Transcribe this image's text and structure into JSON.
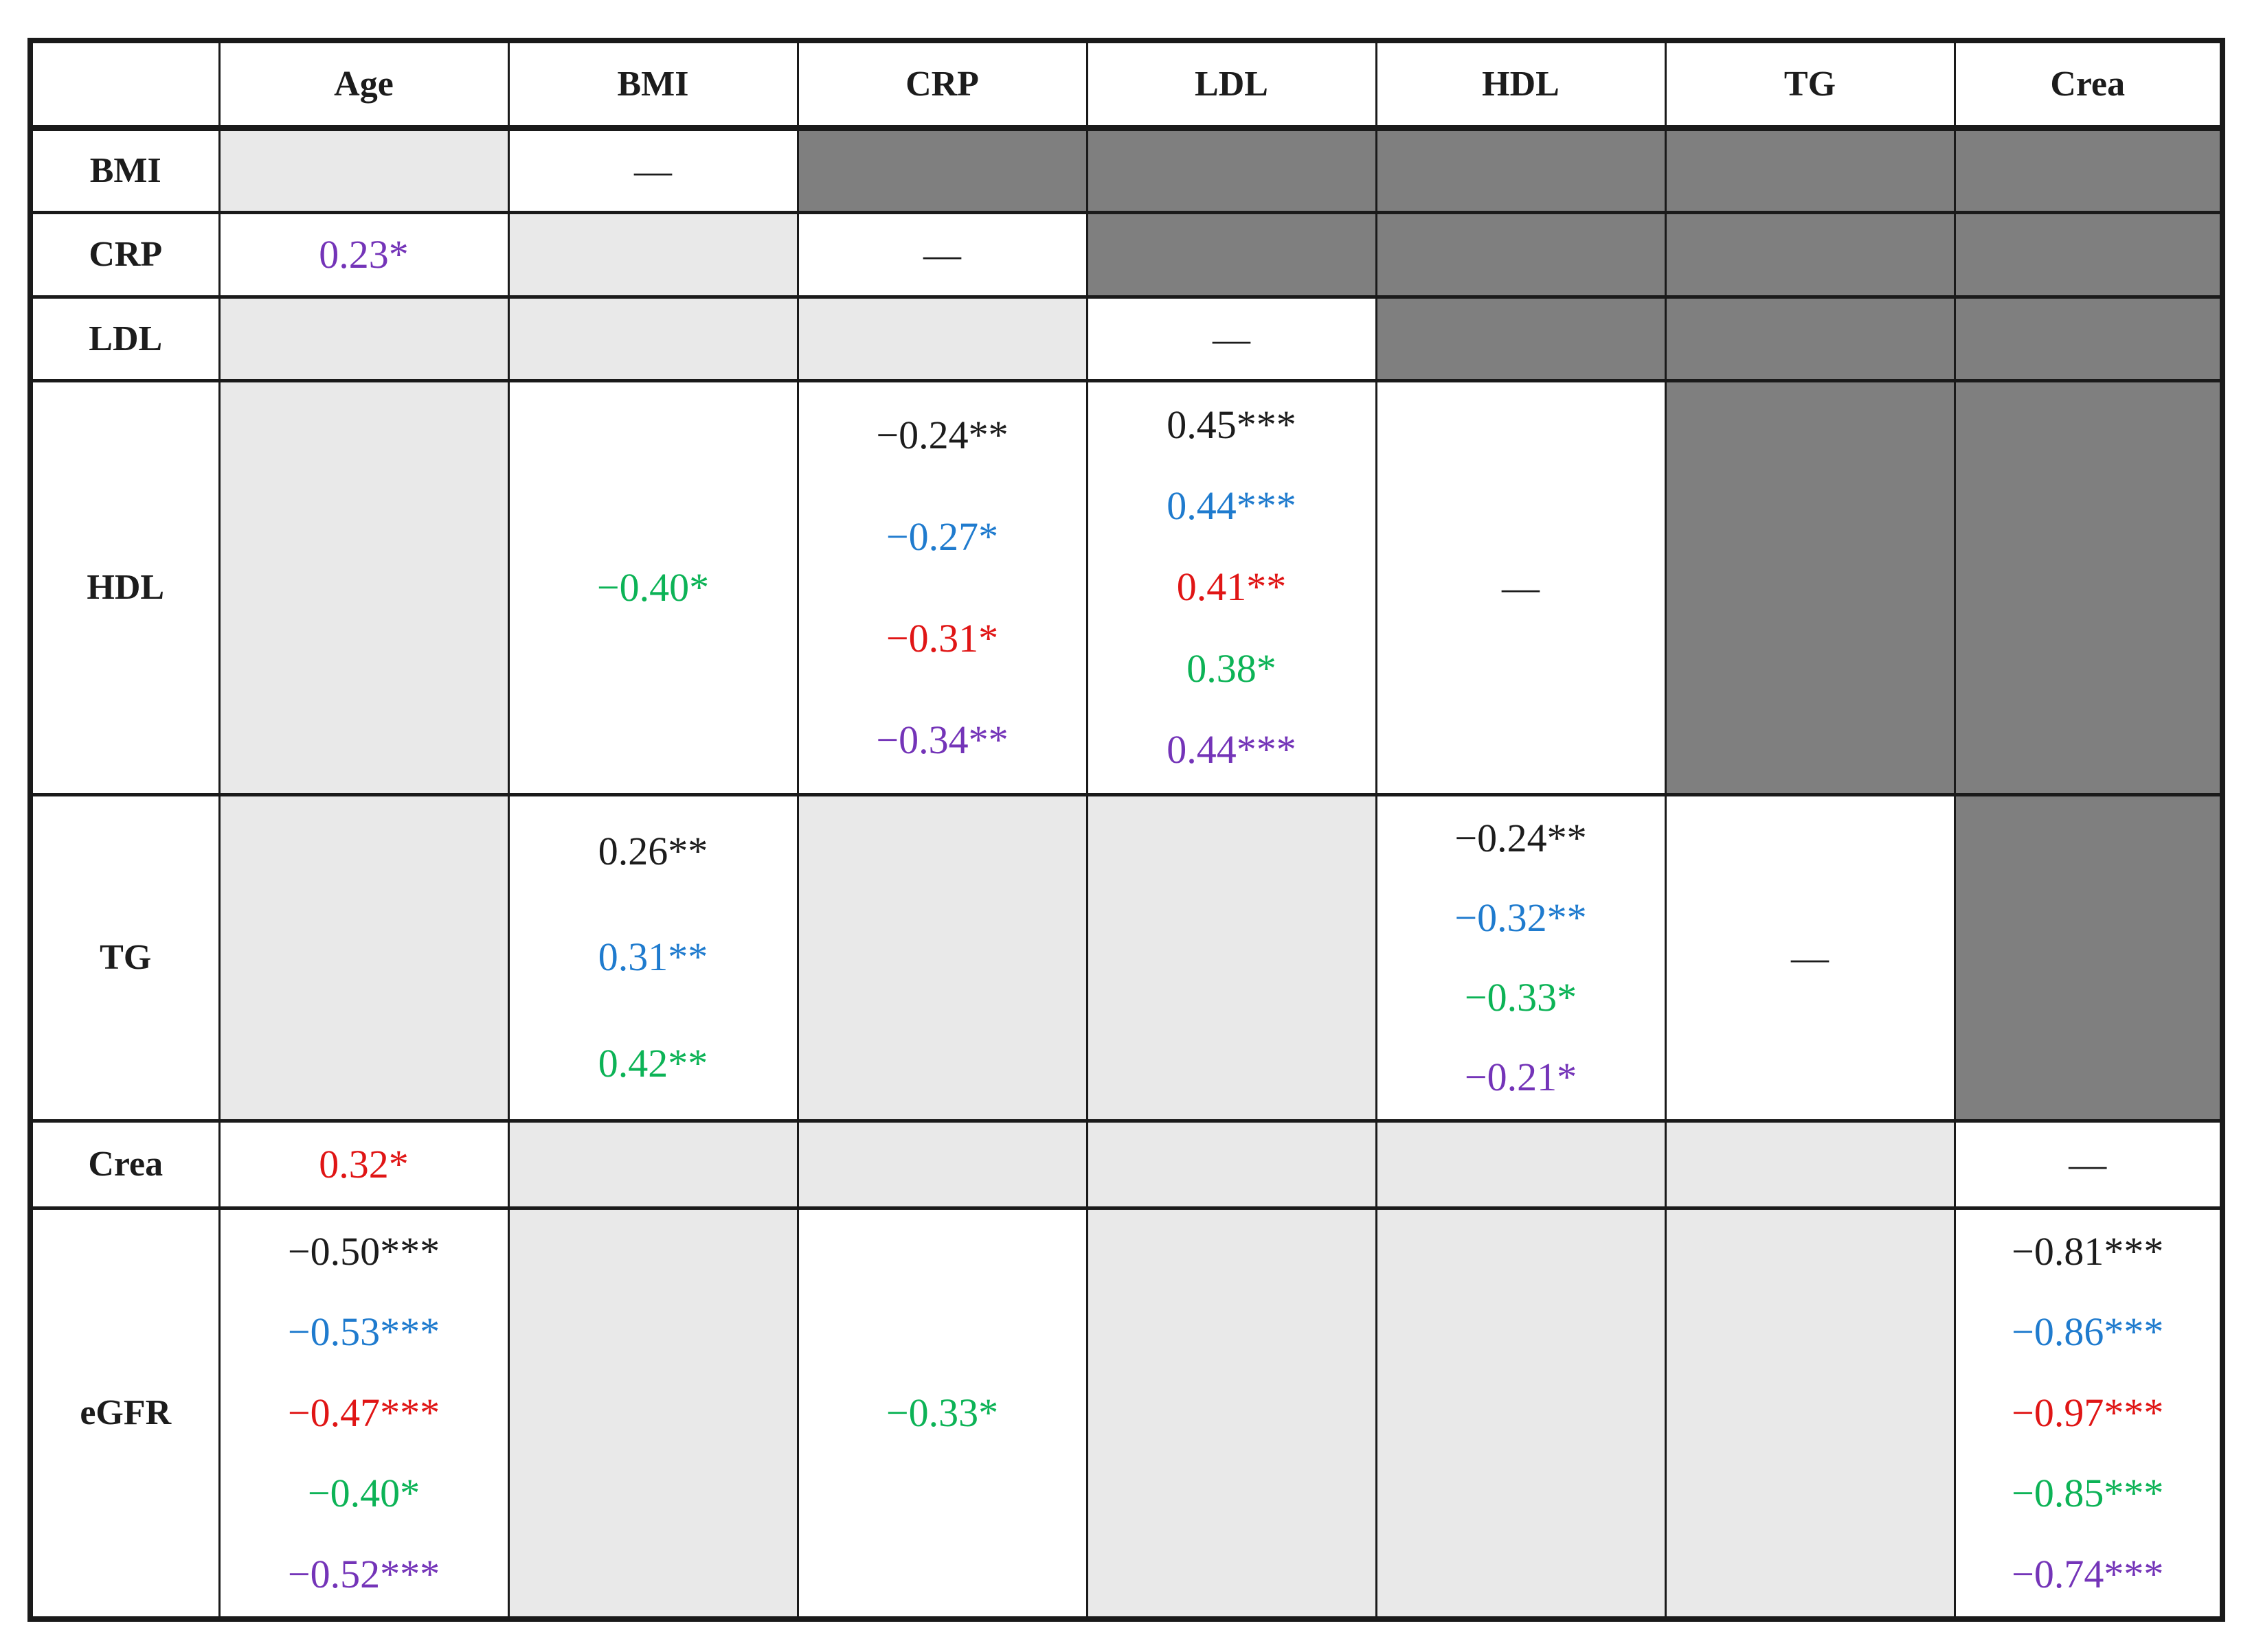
{
  "figure": {
    "description_domain": "correlation table",
    "background": "#ffffff"
  },
  "palette": {
    "black": "#1c1c1c",
    "blue": "#1f7bce",
    "red": "#e01515",
    "green": "#0cb356",
    "purple": "#7434b8",
    "cell_dark": "#7f7f7f",
    "cell_light": "#e9e9e9",
    "cell_white": "#ffffff",
    "border": "#1a1a1a"
  },
  "table": {
    "dash": "—",
    "columns": [
      "",
      "Age",
      "BMI",
      "CRP",
      "LDL",
      "HDL",
      "TG",
      "Crea"
    ],
    "rows": [
      {
        "label": "BMI",
        "cells": [
          {
            "bg": "light"
          },
          {
            "bg": "white",
            "dash": true
          },
          {
            "bg": "dark"
          },
          {
            "bg": "dark"
          },
          {
            "bg": "dark"
          },
          {
            "bg": "dark"
          },
          {
            "bg": "dark"
          }
        ]
      },
      {
        "label": "CRP",
        "cells": [
          {
            "bg": "white",
            "values": [
              {
                "text": "0.23*",
                "color": "purple"
              }
            ]
          },
          {
            "bg": "light"
          },
          {
            "bg": "white",
            "dash": true
          },
          {
            "bg": "dark"
          },
          {
            "bg": "dark"
          },
          {
            "bg": "dark"
          },
          {
            "bg": "dark"
          }
        ]
      },
      {
        "label": "LDL",
        "cells": [
          {
            "bg": "light"
          },
          {
            "bg": "light"
          },
          {
            "bg": "light"
          },
          {
            "bg": "white",
            "dash": true
          },
          {
            "bg": "dark"
          },
          {
            "bg": "dark"
          },
          {
            "bg": "dark"
          }
        ]
      },
      {
        "label": "HDL",
        "cells": [
          {
            "bg": "light"
          },
          {
            "bg": "white",
            "values": [
              {
                "text": "−0.40*",
                "color": "green"
              }
            ]
          },
          {
            "bg": "white",
            "values": [
              {
                "text": "−0.24**",
                "color": "black"
              },
              {
                "text": "−0.27*",
                "color": "blue"
              },
              {
                "text": "−0.31*",
                "color": "red"
              },
              {
                "text": "−0.34**",
                "color": "purple"
              }
            ]
          },
          {
            "bg": "white",
            "values": [
              {
                "text": "0.45***",
                "color": "black"
              },
              {
                "text": "0.44***",
                "color": "blue"
              },
              {
                "text": "0.41**",
                "color": "red"
              },
              {
                "text": "0.38*",
                "color": "green"
              },
              {
                "text": "0.44***",
                "color": "purple"
              }
            ]
          },
          {
            "bg": "white",
            "dash": true
          },
          {
            "bg": "dark"
          },
          {
            "bg": "dark"
          }
        ]
      },
      {
        "label": "TG",
        "cells": [
          {
            "bg": "light"
          },
          {
            "bg": "white",
            "values": [
              {
                "text": "0.26**",
                "color": "black"
              },
              {
                "text": "0.31**",
                "color": "blue"
              },
              {
                "text": "0.42**",
                "color": "green"
              }
            ]
          },
          {
            "bg": "light"
          },
          {
            "bg": "light"
          },
          {
            "bg": "white",
            "values": [
              {
                "text": "−0.24**",
                "color": "black"
              },
              {
                "text": "−0.32**",
                "color": "blue"
              },
              {
                "text": "−0.33*",
                "color": "green"
              },
              {
                "text": "−0.21*",
                "color": "purple"
              }
            ]
          },
          {
            "bg": "white",
            "dash": true
          },
          {
            "bg": "dark"
          }
        ]
      },
      {
        "label": "Crea",
        "cells": [
          {
            "bg": "white",
            "values": [
              {
                "text": "0.32*",
                "color": "red"
              }
            ]
          },
          {
            "bg": "light"
          },
          {
            "bg": "light"
          },
          {
            "bg": "light"
          },
          {
            "bg": "light"
          },
          {
            "bg": "light"
          },
          {
            "bg": "white",
            "dash": true
          }
        ]
      },
      {
        "label": "eGFR",
        "cells": [
          {
            "bg": "white",
            "values": [
              {
                "text": "−0.50***",
                "color": "black"
              },
              {
                "text": "−0.53***",
                "color": "blue"
              },
              {
                "text": "−0.47***",
                "color": "red"
              },
              {
                "text": "−0.40*",
                "color": "green"
              },
              {
                "text": "−0.52***",
                "color": "purple"
              }
            ]
          },
          {
            "bg": "light"
          },
          {
            "bg": "white",
            "values": [
              {
                "text": "−0.33*",
                "color": "green"
              }
            ]
          },
          {
            "bg": "light"
          },
          {
            "bg": "light"
          },
          {
            "bg": "light"
          },
          {
            "bg": "white",
            "values": [
              {
                "text": "−0.81***",
                "color": "black"
              },
              {
                "text": "−0.86***",
                "color": "blue"
              },
              {
                "text": "−0.97***",
                "color": "red"
              },
              {
                "text": "−0.85***",
                "color": "green"
              },
              {
                "text": "−0.74***",
                "color": "purple"
              }
            ]
          }
        ]
      }
    ]
  }
}
